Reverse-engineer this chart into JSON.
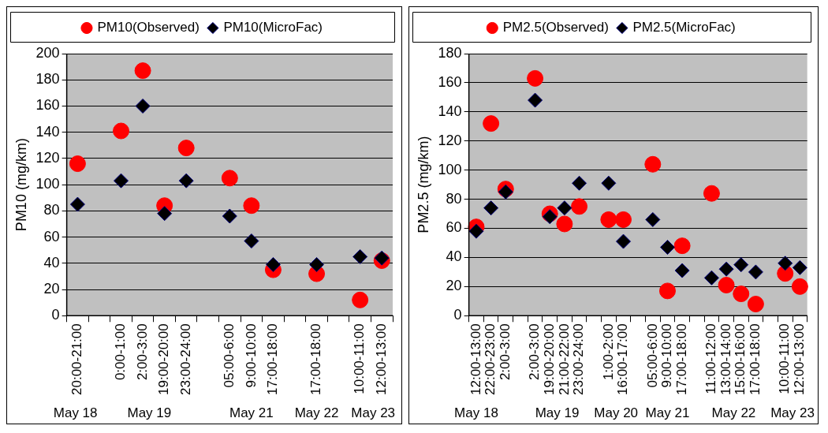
{
  "chart_data": [
    {
      "type": "scatter",
      "ylabel": "PM10 (mg/km)",
      "categories": [
        "20:00-21:00",
        null,
        "0:00-1:00",
        "2:00-3:00",
        "19:00-20:00",
        "23:00-24:00",
        null,
        "05:00-6:00",
        "9:00-10:00",
        "17:00-18:00",
        null,
        "17:00-18:00",
        null,
        "10:00-11:00",
        "12:00-13:00"
      ],
      "series": [
        {
          "name": "PM10(Observed)",
          "color": "#ff0000",
          "marker": "circle",
          "values": [
            116,
            null,
            141,
            187,
            84,
            128,
            null,
            105,
            84,
            35,
            null,
            32,
            null,
            12,
            42
          ]
        },
        {
          "name": "PM10(MicroFac)",
          "color": "#000000",
          "marker": "diamond",
          "values": [
            85,
            null,
            103,
            160,
            78,
            103,
            null,
            76,
            57,
            39,
            null,
            39,
            null,
            45,
            44
          ]
        }
      ],
      "ylim": [
        0,
        200
      ],
      "yticks": [
        0,
        20,
        40,
        60,
        80,
        100,
        120,
        140,
        160,
        180,
        200
      ],
      "grid": "y",
      "legend": "top",
      "annotations": [
        "May 18",
        "May 19",
        "May 21",
        "May 22",
        "May 23"
      ]
    },
    {
      "type": "scatter",
      "ylabel": "PM2.5 (mg/km)",
      "categories": [
        "12:00-13:00",
        "22:00-23:00",
        "2:00-3:00",
        null,
        "2:00-3:00",
        "19:00-20:00",
        "21:00-22:00",
        "23:00-24:00",
        null,
        "1:00-2:00",
        "16:00-17:00",
        null,
        "05:00-6:00",
        "9:00-10:00",
        "17:00-18:00",
        null,
        "11:00-12:00",
        "13:00-14:00",
        "15:00-16:00",
        "17:00-18:00",
        null,
        "10:00-11:00",
        "12:00-13:00"
      ],
      "series": [
        {
          "name": "PM2.5(Observed)",
          "color": "#ff0000",
          "marker": "circle",
          "values": [
            61,
            132,
            87,
            null,
            163,
            70,
            63,
            75,
            null,
            66,
            66,
            null,
            104,
            17,
            48,
            null,
            84,
            21,
            15,
            8,
            null,
            29,
            20
          ]
        },
        {
          "name": "PM2.5(MicroFac)",
          "color": "#000000",
          "marker": "diamond",
          "values": [
            58,
            74,
            85,
            null,
            148,
            68,
            74,
            91,
            null,
            91,
            51,
            null,
            66,
            47,
            31,
            null,
            26,
            32,
            35,
            30,
            null,
            36,
            33
          ]
        }
      ],
      "ylim": [
        0,
        180
      ],
      "yticks": [
        0,
        20,
        40,
        60,
        80,
        100,
        120,
        140,
        160,
        180
      ],
      "grid": "y",
      "legend": "top",
      "annotations": [
        "May 18",
        "May 19",
        "May 20",
        "May 21",
        "May 22",
        "May 23"
      ]
    }
  ]
}
